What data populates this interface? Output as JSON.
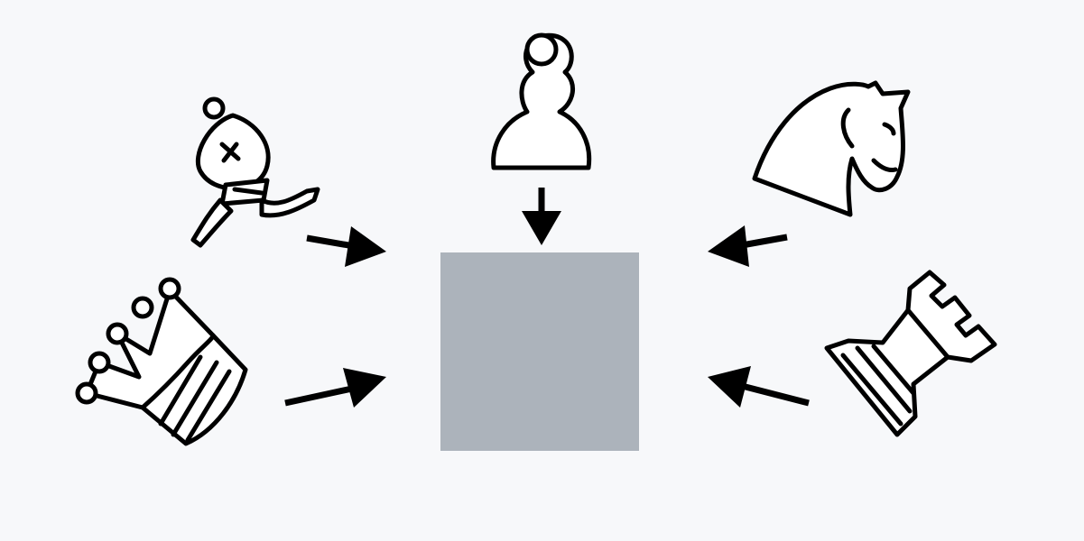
{
  "colors": {
    "background": "#f7f8fa",
    "target_square": "#acb3bb",
    "ink": "#000000",
    "piece_fill": "#ffffff"
  },
  "target": {
    "name": "target-square"
  },
  "pieces": [
    {
      "name": "pawn",
      "icon": "chess-pawn-icon"
    },
    {
      "name": "bishop",
      "icon": "chess-bishop-icon"
    },
    {
      "name": "knight",
      "icon": "chess-knight-icon"
    },
    {
      "name": "queen",
      "icon": "chess-queen-icon"
    },
    {
      "name": "rook",
      "icon": "chess-rook-icon"
    }
  ]
}
